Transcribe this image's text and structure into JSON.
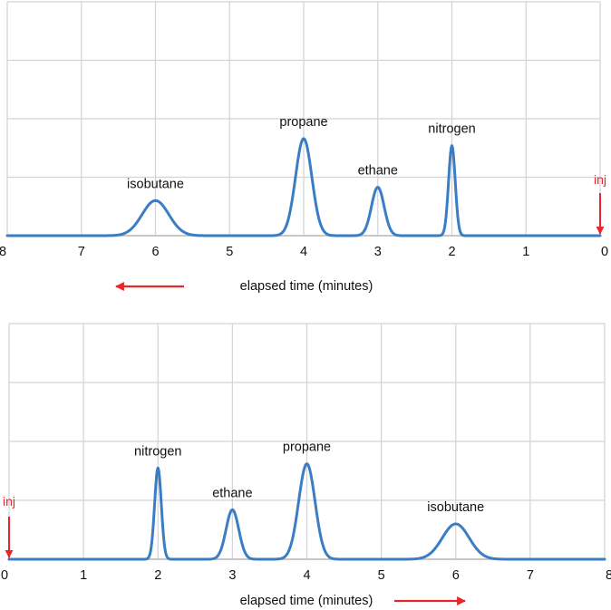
{
  "colors": {
    "trace": "#3a7dc4",
    "arrow": "#e8262b",
    "text": "#111111",
    "grid": "#d3d3d3"
  },
  "chart_data": [
    {
      "type": "line",
      "direction": "reversed",
      "xlabel": "elapsed time (minutes)",
      "xlim": [
        8,
        0
      ],
      "ylim": [
        0,
        1
      ],
      "x_ticks": [
        "8",
        "7",
        "6",
        "5",
        "4",
        "3",
        "2",
        "1",
        "0"
      ],
      "injection_marker": {
        "label": "inj",
        "x": 0
      },
      "time_arrow": "left",
      "peaks": [
        {
          "name": "isobutane",
          "time": 6.0,
          "height": 0.6,
          "width": 0.18
        },
        {
          "name": "propane",
          "time": 4.0,
          "height": 1.66,
          "width": 0.11
        },
        {
          "name": "ethane",
          "time": 3.0,
          "height": 0.83,
          "width": 0.085
        },
        {
          "name": "nitrogen",
          "time": 2.0,
          "height": 1.54,
          "width": 0.045
        }
      ]
    },
    {
      "type": "line",
      "direction": "normal",
      "xlabel": "elapsed time (minutes)",
      "xlim": [
        0,
        8
      ],
      "ylim": [
        0,
        1
      ],
      "x_ticks": [
        "0",
        "1",
        "2",
        "3",
        "4",
        "5",
        "6",
        "7",
        "8"
      ],
      "injection_marker": {
        "label": "inj",
        "x": 0
      },
      "time_arrow": "right",
      "peaks": [
        {
          "name": "nitrogen",
          "time": 2.0,
          "height": 1.55,
          "width": 0.045
        },
        {
          "name": "ethane",
          "time": 3.0,
          "height": 0.84,
          "width": 0.085
        },
        {
          "name": "propane",
          "time": 4.0,
          "height": 1.62,
          "width": 0.11
        },
        {
          "name": "isobutane",
          "time": 6.0,
          "height": 0.6,
          "width": 0.18
        }
      ]
    }
  ]
}
